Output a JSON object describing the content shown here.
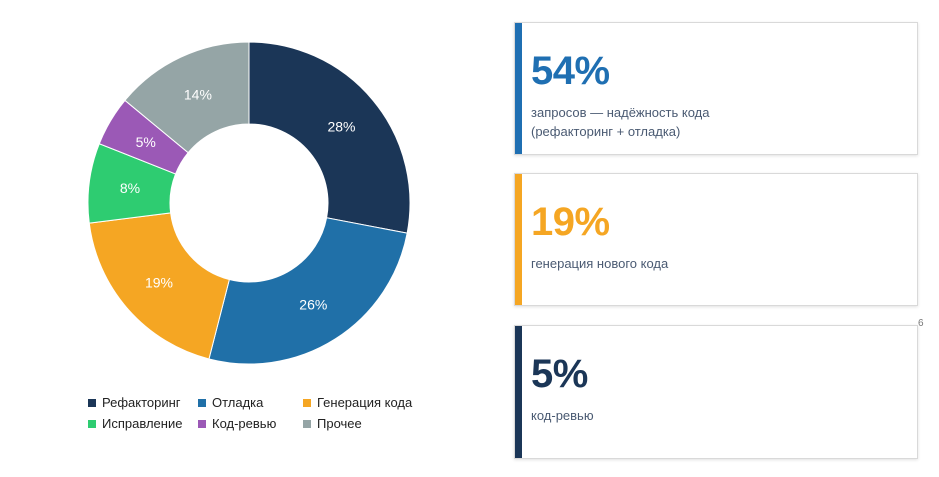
{
  "chart_data": {
    "type": "pie",
    "donut": true,
    "categories": [
      "Рефакторинг",
      "Отладка",
      "Генерация кода",
      "Исправление",
      "Код-ревью",
      "Прочее"
    ],
    "values": [
      28,
      26,
      19,
      8,
      5,
      14
    ],
    "labels": [
      "28%",
      "26%",
      "19%",
      "8%",
      "5%",
      "14%"
    ],
    "colors": [
      "#1b3657",
      "#2070a8",
      "#f5a623",
      "#2ecc71",
      "#9b59b6",
      "#95a5a6"
    ],
    "legend_position": "bottom"
  },
  "cards": [
    {
      "value": "54%",
      "desc_line1": "запросов — надёжность кода",
      "desc_line2": "(рефакторинг + отладка)",
      "accent": "#1f6fb2"
    },
    {
      "value": "19%",
      "desc_line1": "генерация нового кода",
      "desc_line2": "",
      "accent": "#f5a623"
    },
    {
      "value": "5%",
      "desc_line1": "код-ревью",
      "desc_line2": "",
      "accent": "#1b3657"
    }
  ],
  "page_number": "6"
}
